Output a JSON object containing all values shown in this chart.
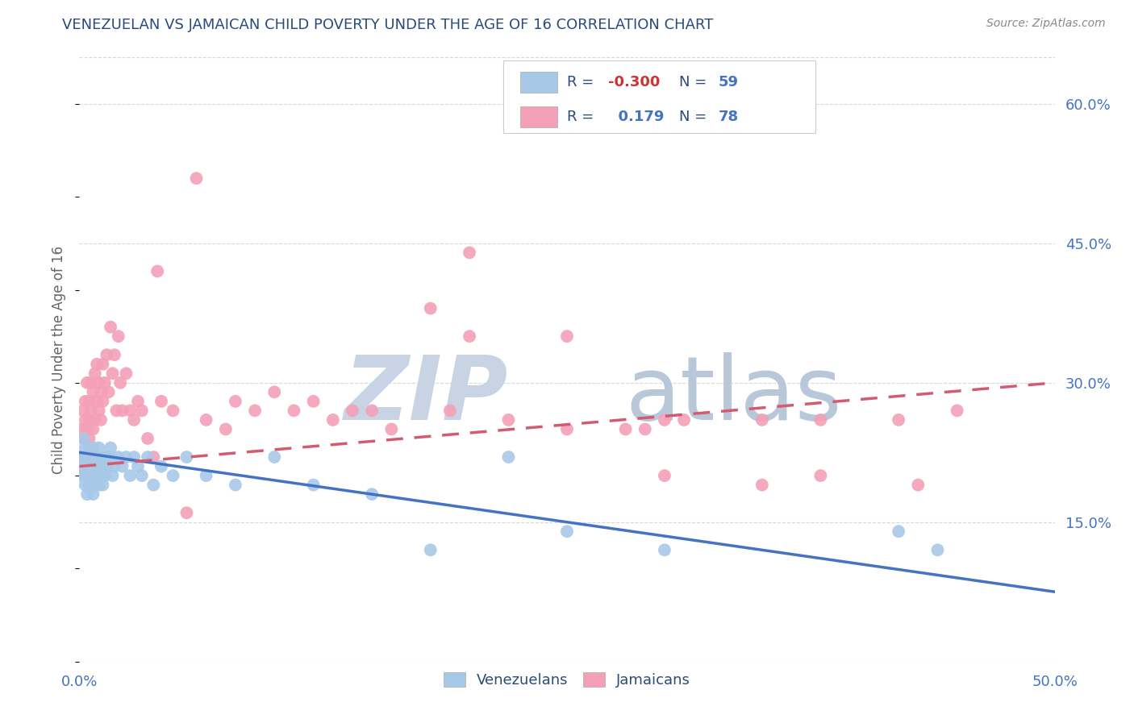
{
  "title": "VENEZUELAN VS JAMAICAN CHILD POVERTY UNDER THE AGE OF 16 CORRELATION CHART",
  "source": "Source: ZipAtlas.com",
  "ylabel": "Child Poverty Under the Age of 16",
  "xlim": [
    0,
    0.5
  ],
  "ylim": [
    0,
    0.65
  ],
  "ytick_labels_right": [
    "15.0%",
    "30.0%",
    "45.0%",
    "60.0%"
  ],
  "ytick_vals_right": [
    0.15,
    0.3,
    0.45,
    0.6
  ],
  "blue_color": "#a8c8e8",
  "pink_color": "#f4a0b8",
  "blue_line_color": "#4472c4",
  "pink_line_color": "#d45a70",
  "title_color": "#2a4a7a",
  "source_color": "#888888",
  "grid_color": "#d8d8d8",
  "watermark_zip_color": "#c8d4e4",
  "watermark_atlas_color": "#b8c8d8",
  "venezuelans_x": [
    0.001,
    0.001,
    0.002,
    0.002,
    0.003,
    0.003,
    0.003,
    0.004,
    0.004,
    0.004,
    0.005,
    0.005,
    0.005,
    0.006,
    0.006,
    0.007,
    0.007,
    0.007,
    0.008,
    0.008,
    0.009,
    0.009,
    0.01,
    0.01,
    0.01,
    0.011,
    0.011,
    0.012,
    0.012,
    0.013,
    0.013,
    0.014,
    0.015,
    0.016,
    0.017,
    0.018,
    0.02,
    0.022,
    0.024,
    0.026,
    0.028,
    0.03,
    0.032,
    0.035,
    0.038,
    0.042,
    0.048,
    0.055,
    0.065,
    0.08,
    0.1,
    0.12,
    0.15,
    0.18,
    0.22,
    0.25,
    0.3,
    0.42,
    0.44
  ],
  "venezuelans_y": [
    0.22,
    0.2,
    0.21,
    0.24,
    0.2,
    0.23,
    0.19,
    0.21,
    0.22,
    0.18,
    0.2,
    0.23,
    0.19,
    0.21,
    0.22,
    0.2,
    0.18,
    0.23,
    0.19,
    0.21,
    0.2,
    0.22,
    0.19,
    0.21,
    0.23,
    0.2,
    0.22,
    0.21,
    0.19,
    0.22,
    0.2,
    0.21,
    0.22,
    0.23,
    0.2,
    0.21,
    0.22,
    0.21,
    0.22,
    0.2,
    0.22,
    0.21,
    0.2,
    0.22,
    0.19,
    0.21,
    0.2,
    0.22,
    0.2,
    0.19,
    0.22,
    0.19,
    0.18,
    0.12,
    0.22,
    0.14,
    0.12,
    0.14,
    0.12
  ],
  "jamaicans_x": [
    0.001,
    0.001,
    0.002,
    0.002,
    0.003,
    0.003,
    0.003,
    0.004,
    0.004,
    0.005,
    0.005,
    0.005,
    0.006,
    0.006,
    0.007,
    0.007,
    0.008,
    0.008,
    0.009,
    0.009,
    0.01,
    0.01,
    0.011,
    0.011,
    0.012,
    0.012,
    0.013,
    0.014,
    0.015,
    0.016,
    0.017,
    0.018,
    0.019,
    0.02,
    0.021,
    0.022,
    0.024,
    0.026,
    0.028,
    0.03,
    0.032,
    0.035,
    0.038,
    0.042,
    0.048,
    0.055,
    0.065,
    0.075,
    0.09,
    0.11,
    0.13,
    0.16,
    0.19,
    0.22,
    0.25,
    0.28,
    0.31,
    0.35,
    0.38,
    0.42,
    0.45,
    0.1,
    0.08,
    0.15,
    0.18,
    0.2,
    0.25,
    0.29,
    0.35,
    0.04,
    0.06,
    0.12,
    0.14,
    0.3,
    0.38,
    0.43,
    0.3,
    0.2
  ],
  "jamaicans_y": [
    0.25,
    0.22,
    0.27,
    0.24,
    0.26,
    0.28,
    0.22,
    0.3,
    0.25,
    0.26,
    0.24,
    0.28,
    0.27,
    0.3,
    0.25,
    0.29,
    0.26,
    0.31,
    0.28,
    0.32,
    0.27,
    0.3,
    0.29,
    0.26,
    0.32,
    0.28,
    0.3,
    0.33,
    0.29,
    0.36,
    0.31,
    0.33,
    0.27,
    0.35,
    0.3,
    0.27,
    0.31,
    0.27,
    0.26,
    0.28,
    0.27,
    0.24,
    0.22,
    0.28,
    0.27,
    0.16,
    0.26,
    0.25,
    0.27,
    0.27,
    0.26,
    0.25,
    0.27,
    0.26,
    0.25,
    0.25,
    0.26,
    0.26,
    0.26,
    0.26,
    0.27,
    0.29,
    0.28,
    0.27,
    0.38,
    0.44,
    0.35,
    0.25,
    0.19,
    0.42,
    0.52,
    0.28,
    0.27,
    0.2,
    0.2,
    0.19,
    0.26,
    0.35
  ],
  "blue_trend_x": [
    0.0,
    0.5
  ],
  "blue_trend_y": [
    0.225,
    0.075
  ],
  "pink_trend_x": [
    0.0,
    0.5
  ],
  "pink_trend_y": [
    0.21,
    0.3
  ]
}
